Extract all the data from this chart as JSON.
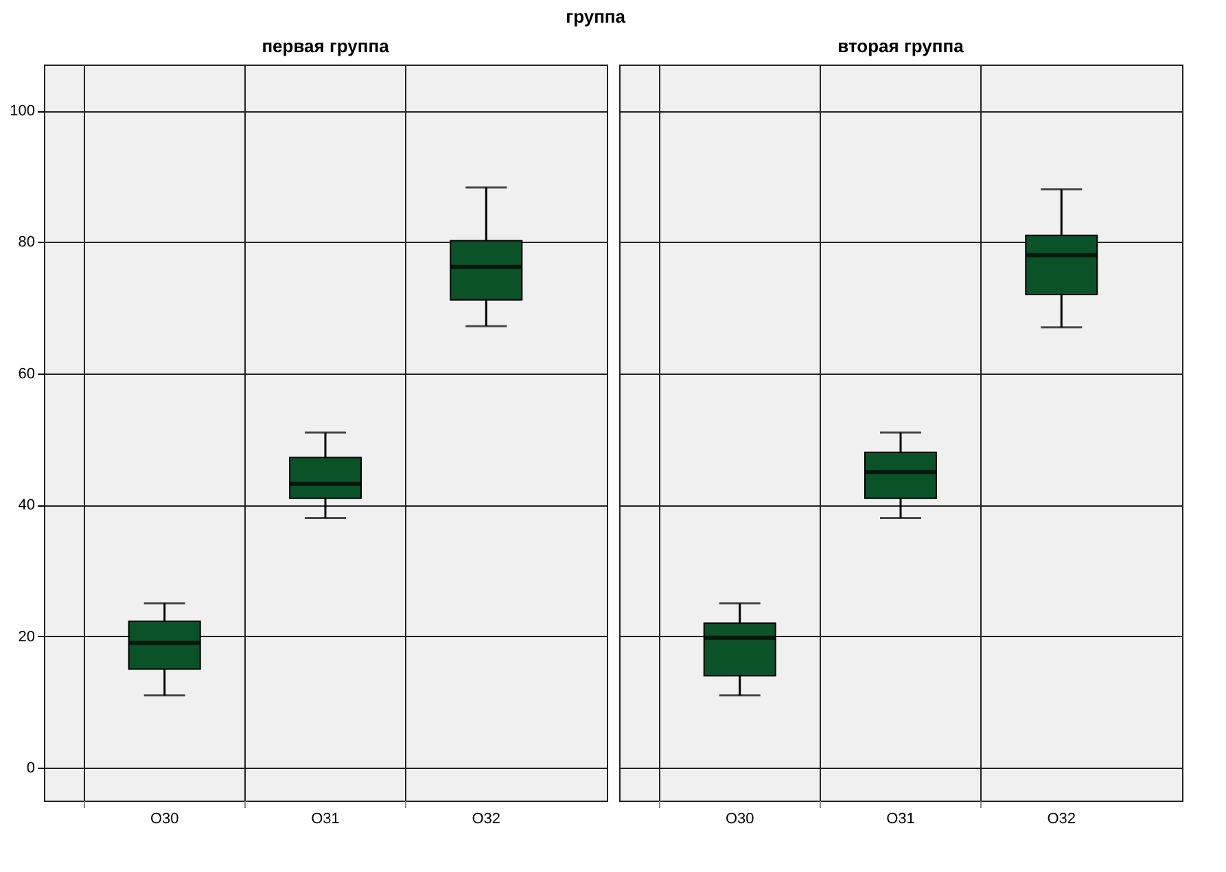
{
  "chart_data": [
    {
      "type": "box",
      "title": "первая группа",
      "annotations": [
        "группа"
      ],
      "categories": [
        "O30",
        "O31",
        "O32"
      ],
      "color": "#0b5229",
      "ylim": [
        -5,
        107
      ],
      "yticks": [
        0,
        20,
        40,
        60,
        80,
        100
      ],
      "grid": true,
      "boxes": [
        {
          "low": 11,
          "q1": 15,
          "median": 19,
          "q3": 22.3,
          "high": 25
        },
        {
          "low": 38,
          "q1": 41,
          "median": 43.2,
          "q3": 47.2,
          "high": 51
        },
        {
          "low": 67.2,
          "q1": 71.2,
          "median": 76.2,
          "q3": 80.2,
          "high": 88.3
        }
      ]
    },
    {
      "type": "box",
      "title": "вторая группа",
      "categories": [
        "O30",
        "O31",
        "O32"
      ],
      "color": "#0b5229",
      "ylim": [
        -5,
        107
      ],
      "yticks": [
        0,
        20,
        40,
        60,
        80,
        100
      ],
      "grid": true,
      "tick_labels": "x",
      "boxes": [
        {
          "low": 11,
          "q1": 14,
          "median": 19.8,
          "q3": 22,
          "high": 25
        },
        {
          "low": 38,
          "q1": 41,
          "median": 45,
          "q3": 48,
          "high": 51
        },
        {
          "low": 67,
          "q1": 72,
          "median": 78,
          "q3": 81,
          "high": 88
        }
      ]
    }
  ]
}
